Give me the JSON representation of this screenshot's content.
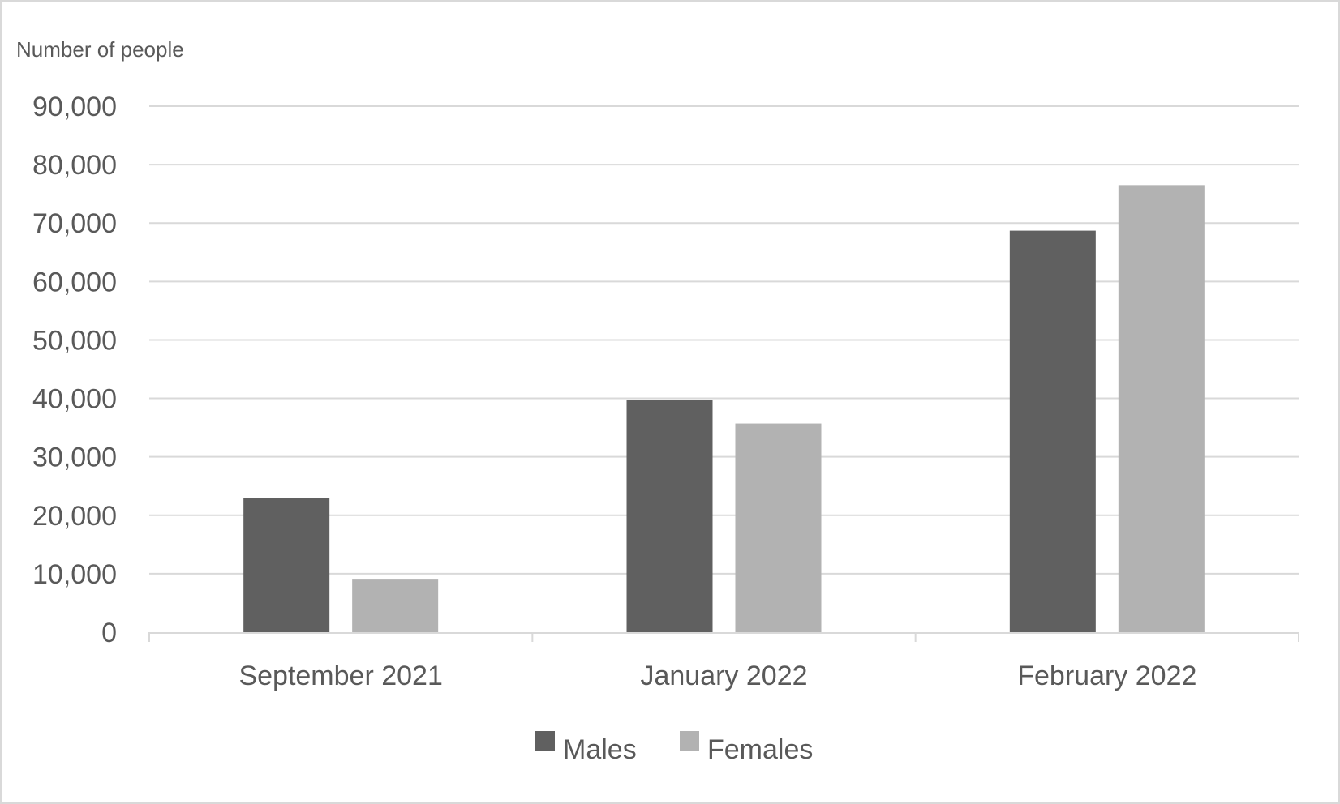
{
  "chart_data": {
    "type": "bar",
    "title": "",
    "ylabel": "Number of people",
    "xlabel": "",
    "categories": [
      "September 2021",
      "January 2022",
      "February 2022"
    ],
    "series": [
      {
        "name": "Males",
        "color": "#606060",
        "values": [
          23000,
          39800,
          68700
        ]
      },
      {
        "name": "Females",
        "color": "#b2b2b2",
        "values": [
          9000,
          35700,
          76500
        ]
      }
    ],
    "ylim": [
      0,
      90000
    ],
    "yticks": [
      0,
      10000,
      20000,
      30000,
      40000,
      50000,
      60000,
      70000,
      80000,
      90000
    ],
    "ytick_labels": [
      "0",
      "10,000",
      "20,000",
      "30,000",
      "40,000",
      "50,000",
      "60,000",
      "70,000",
      "80,000",
      "90,000"
    ],
    "grid": true,
    "legend_position": "bottom"
  }
}
